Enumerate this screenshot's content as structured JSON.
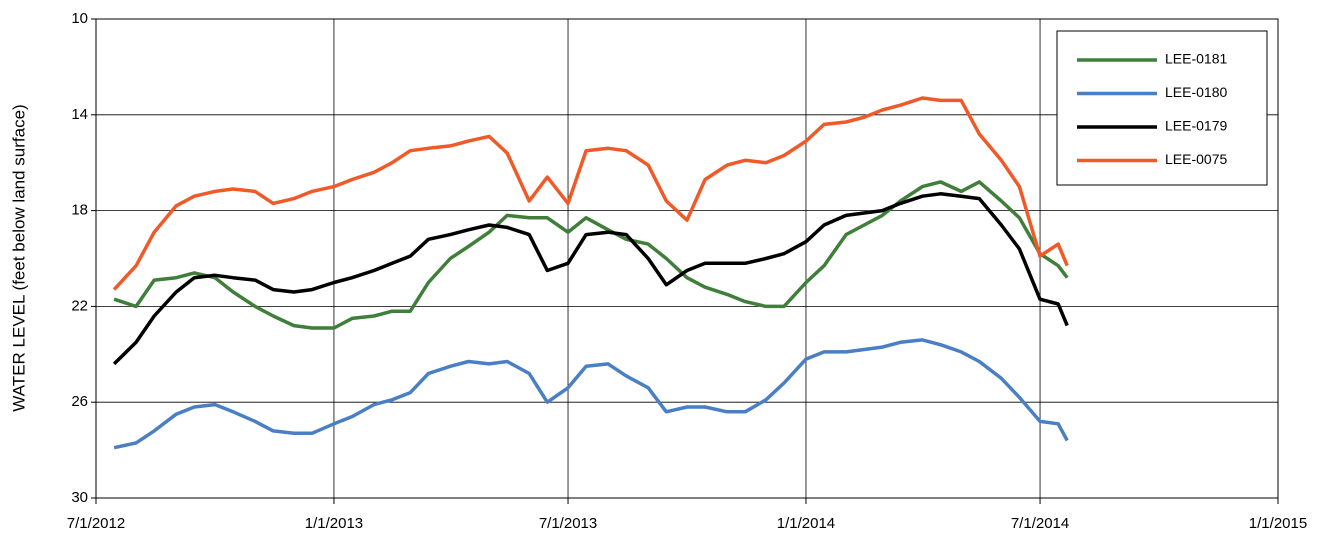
{
  "chart_data": {
    "type": "line",
    "ylabel": "WATER LEVEL (feet below land surface)",
    "x": [
      "2012-07-15",
      "2012-08-01",
      "2012-08-15",
      "2012-09-01",
      "2012-09-15",
      "2012-10-01",
      "2012-10-15",
      "2012-11-01",
      "2012-11-15",
      "2012-12-01",
      "2012-12-15",
      "2013-01-01",
      "2013-01-15",
      "2013-02-01",
      "2013-02-15",
      "2013-03-01",
      "2013-03-15",
      "2013-04-01",
      "2013-04-15",
      "2013-05-01",
      "2013-05-15",
      "2013-06-01",
      "2013-06-15",
      "2013-07-01",
      "2013-07-15",
      "2013-08-01",
      "2013-08-15",
      "2013-09-01",
      "2013-09-15",
      "2013-10-01",
      "2013-10-15",
      "2013-11-01",
      "2013-11-15",
      "2013-12-01",
      "2013-12-15",
      "2014-01-01",
      "2014-01-15",
      "2014-02-01",
      "2014-02-15",
      "2014-03-01",
      "2014-03-15",
      "2014-04-01",
      "2014-04-15",
      "2014-05-01",
      "2014-05-15",
      "2014-06-01",
      "2014-06-15",
      "2014-07-01",
      "2014-07-15",
      "2014-07-22"
    ],
    "series": [
      {
        "name": "LEE-0181",
        "color": "#3f7f3a",
        "values": [
          21.7,
          22.0,
          20.9,
          20.8,
          20.6,
          20.8,
          21.4,
          22.0,
          22.4,
          22.8,
          22.9,
          22.9,
          22.5,
          22.4,
          22.2,
          22.2,
          21.0,
          20.0,
          19.5,
          18.9,
          18.2,
          18.3,
          18.3,
          18.9,
          18.3,
          18.8,
          19.2,
          19.4,
          20.0,
          20.8,
          21.2,
          21.5,
          21.8,
          22.0,
          22.0,
          21.0,
          20.3,
          19.0,
          18.6,
          18.2,
          17.6,
          17.0,
          16.8,
          17.2,
          16.8,
          17.6,
          18.3,
          19.8,
          20.3,
          20.8
        ]
      },
      {
        "name": "LEE-0180",
        "color": "#4a7fc4",
        "values": [
          27.9,
          27.7,
          27.2,
          26.5,
          26.2,
          26.1,
          26.4,
          26.8,
          27.2,
          27.3,
          27.3,
          26.9,
          26.6,
          26.1,
          25.9,
          25.6,
          24.8,
          24.5,
          24.3,
          24.4,
          24.3,
          24.8,
          26.0,
          25.4,
          24.5,
          24.4,
          24.9,
          25.4,
          26.4,
          26.2,
          26.2,
          26.4,
          26.4,
          25.9,
          25.2,
          24.2,
          23.9,
          23.9,
          23.8,
          23.7,
          23.5,
          23.4,
          23.6,
          23.9,
          24.3,
          25.0,
          25.8,
          26.8,
          26.9,
          27.6
        ]
      },
      {
        "name": "LEE-0179",
        "color": "#000000",
        "values": [
          24.4,
          23.5,
          22.4,
          21.4,
          20.8,
          20.7,
          20.8,
          20.9,
          21.3,
          21.4,
          21.3,
          21.0,
          20.8,
          20.5,
          20.2,
          19.9,
          19.2,
          19.0,
          18.8,
          18.6,
          18.7,
          19.0,
          20.5,
          20.2,
          19.0,
          18.9,
          19.0,
          20.0,
          21.1,
          20.5,
          20.2,
          20.2,
          20.2,
          20.0,
          19.8,
          19.3,
          18.6,
          18.2,
          18.1,
          18.0,
          17.7,
          17.4,
          17.3,
          17.4,
          17.5,
          18.6,
          19.6,
          21.7,
          21.9,
          22.8
        ]
      },
      {
        "name": "LEE-0075",
        "color": "#f05a28",
        "values": [
          21.3,
          20.3,
          18.9,
          17.8,
          17.4,
          17.2,
          17.1,
          17.2,
          17.7,
          17.5,
          17.2,
          17.0,
          16.7,
          16.4,
          16.0,
          15.5,
          15.4,
          15.3,
          15.1,
          14.9,
          15.6,
          17.6,
          16.6,
          17.7,
          15.5,
          15.4,
          15.5,
          16.1,
          17.6,
          18.4,
          16.7,
          16.1,
          15.9,
          16.0,
          15.7,
          15.1,
          14.4,
          14.3,
          14.1,
          13.8,
          13.6,
          13.3,
          13.4,
          13.4,
          14.8,
          15.9,
          17.0,
          19.9,
          19.4,
          20.3
        ]
      }
    ],
    "xlim": [
      "2012-07-01",
      "2015-01-01"
    ],
    "xticks": [
      {
        "value": "2012-07-01",
        "label": "7/1/2012"
      },
      {
        "value": "2013-01-01",
        "label": "1/1/2013"
      },
      {
        "value": "2013-07-01",
        "label": "7/1/2013"
      },
      {
        "value": "2014-01-01",
        "label": "1/1/2014"
      },
      {
        "value": "2014-07-01",
        "label": "7/1/2014"
      },
      {
        "value": "2015-01-01",
        "label": "1/1/2015"
      }
    ],
    "ylim": [
      10,
      30
    ],
    "yticks": [
      10,
      14,
      18,
      22,
      26,
      30
    ],
    "y_inverted": true,
    "grid": true,
    "legend": "upper right"
  }
}
